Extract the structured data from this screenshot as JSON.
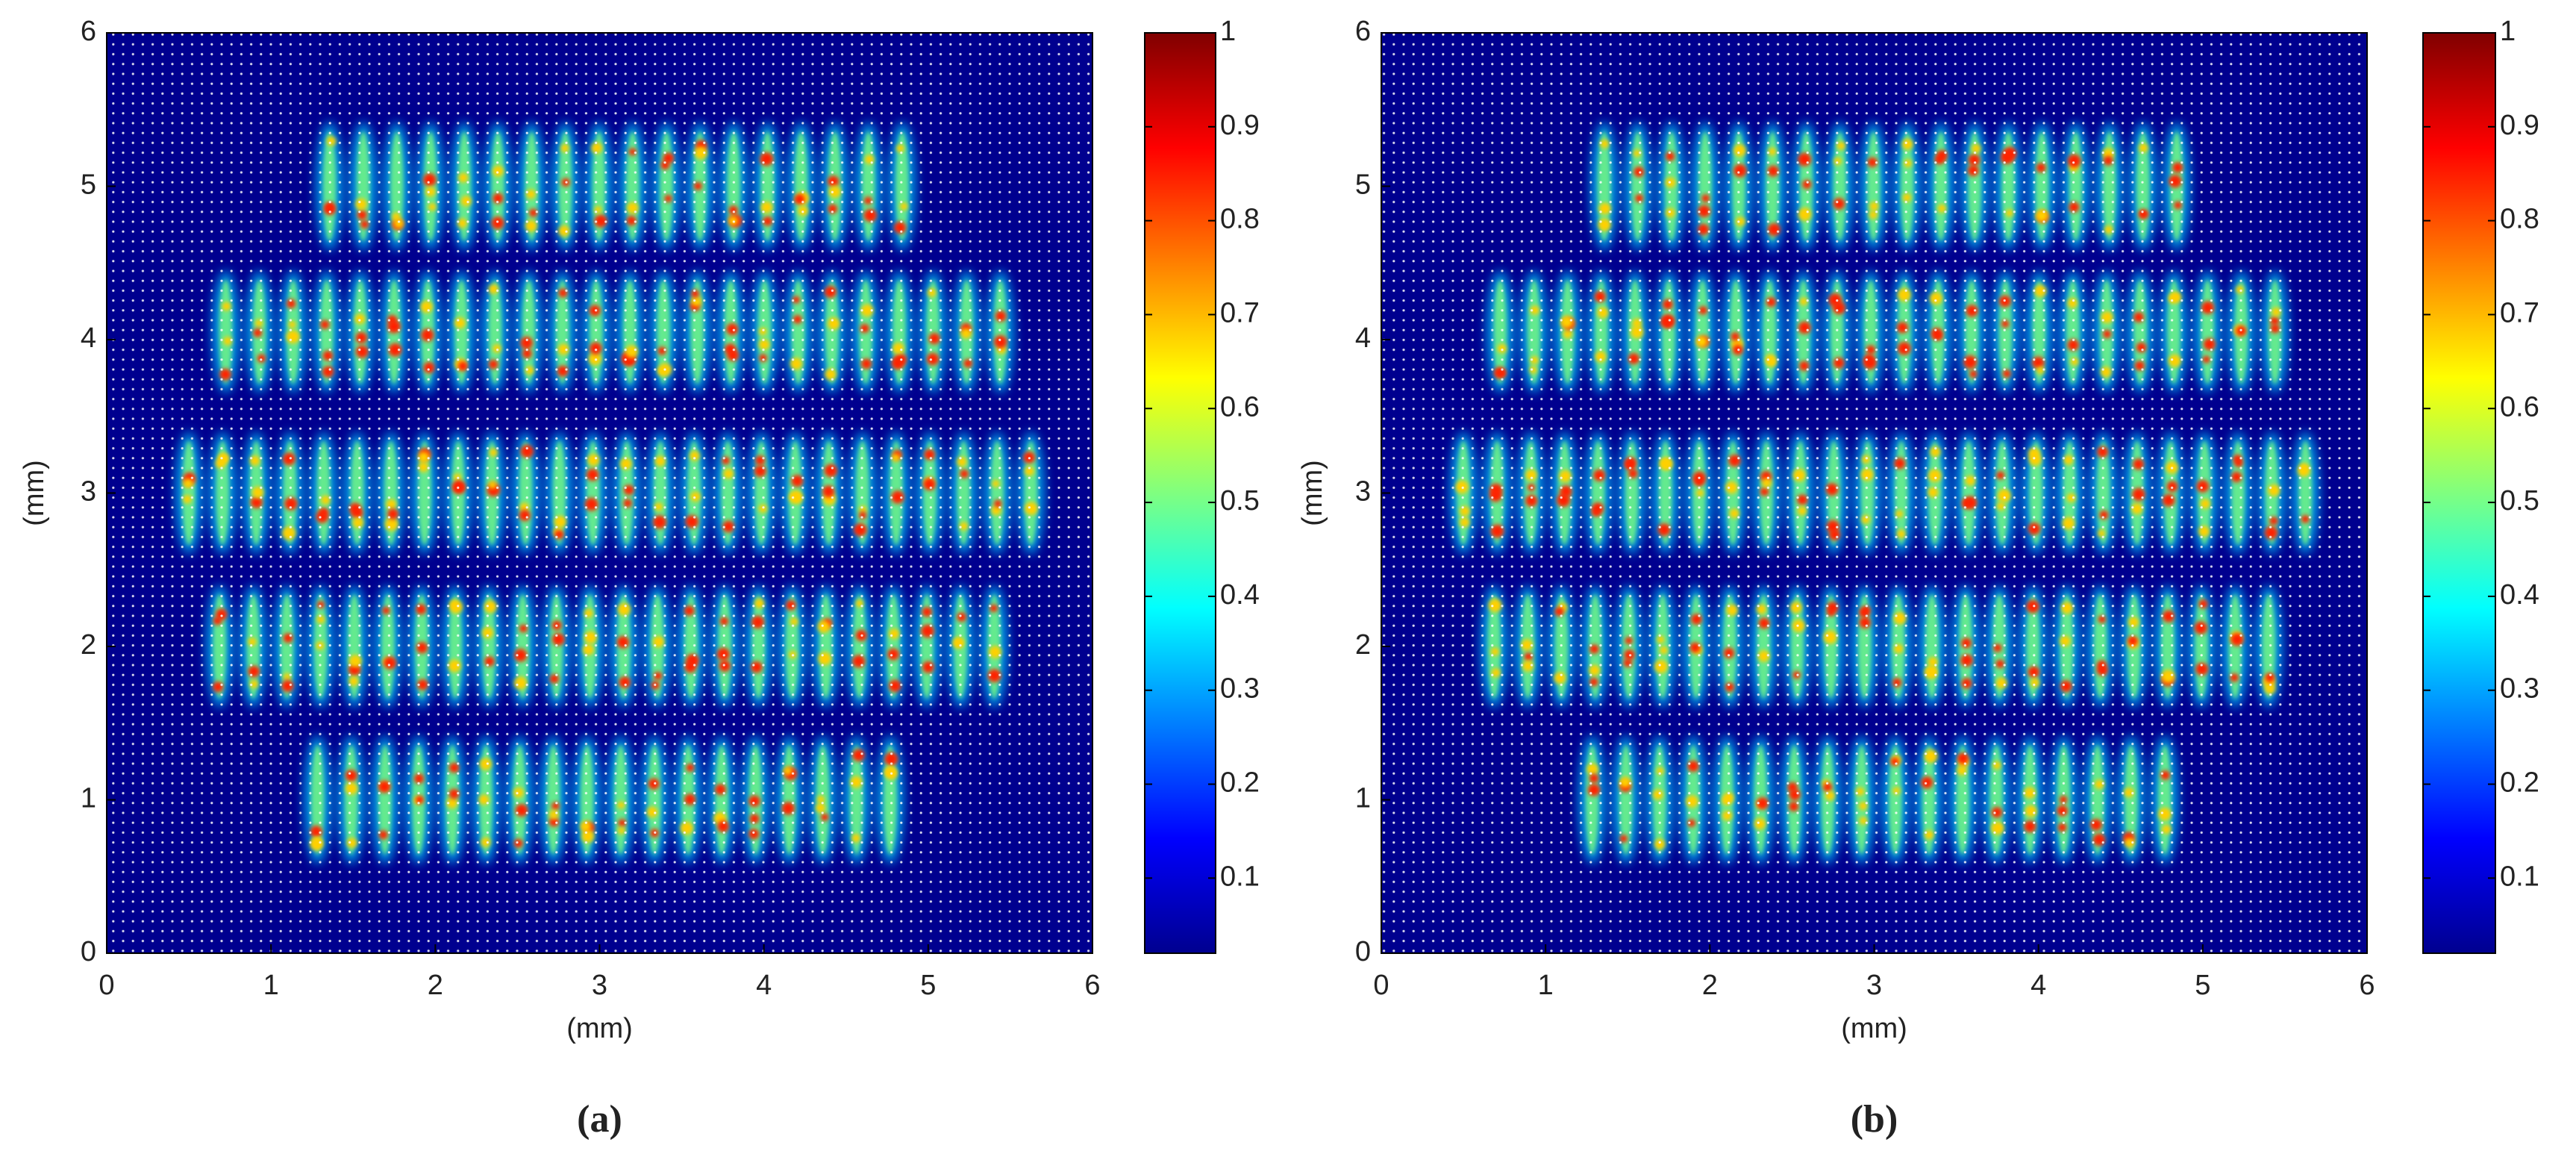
{
  "chart_data": [
    {
      "type": "heatmap",
      "caption": "(a)",
      "xlabel": "(mm)",
      "ylabel": "(mm)",
      "xlim": [
        0,
        6
      ],
      "ylim": [
        0,
        6
      ],
      "xticks": [
        0,
        1,
        2,
        3,
        4,
        5,
        6
      ],
      "yticks": [
        0,
        1,
        2,
        3,
        4,
        5,
        6
      ],
      "colormap": "jet",
      "clim": [
        0.02,
        1
      ],
      "cticks": [
        0.1,
        0.2,
        0.3,
        0.4,
        0.5,
        0.6,
        0.7,
        0.8,
        0.9,
        1
      ]
    },
    {
      "type": "heatmap",
      "caption": "(b)",
      "xlabel": "(mm)",
      "ylabel": "(mm)",
      "xlim": [
        0,
        6
      ],
      "ylim": [
        0,
        6
      ],
      "xticks": [
        0,
        1,
        2,
        3,
        4,
        5,
        6
      ],
      "yticks": [
        0,
        1,
        2,
        3,
        4,
        5,
        6
      ],
      "colormap": "jet",
      "clim": [
        0.02,
        1
      ],
      "cticks": [
        0.1,
        0.2,
        0.3,
        0.4,
        0.5,
        0.6,
        0.7,
        0.8,
        0.9,
        1
      ]
    }
  ]
}
